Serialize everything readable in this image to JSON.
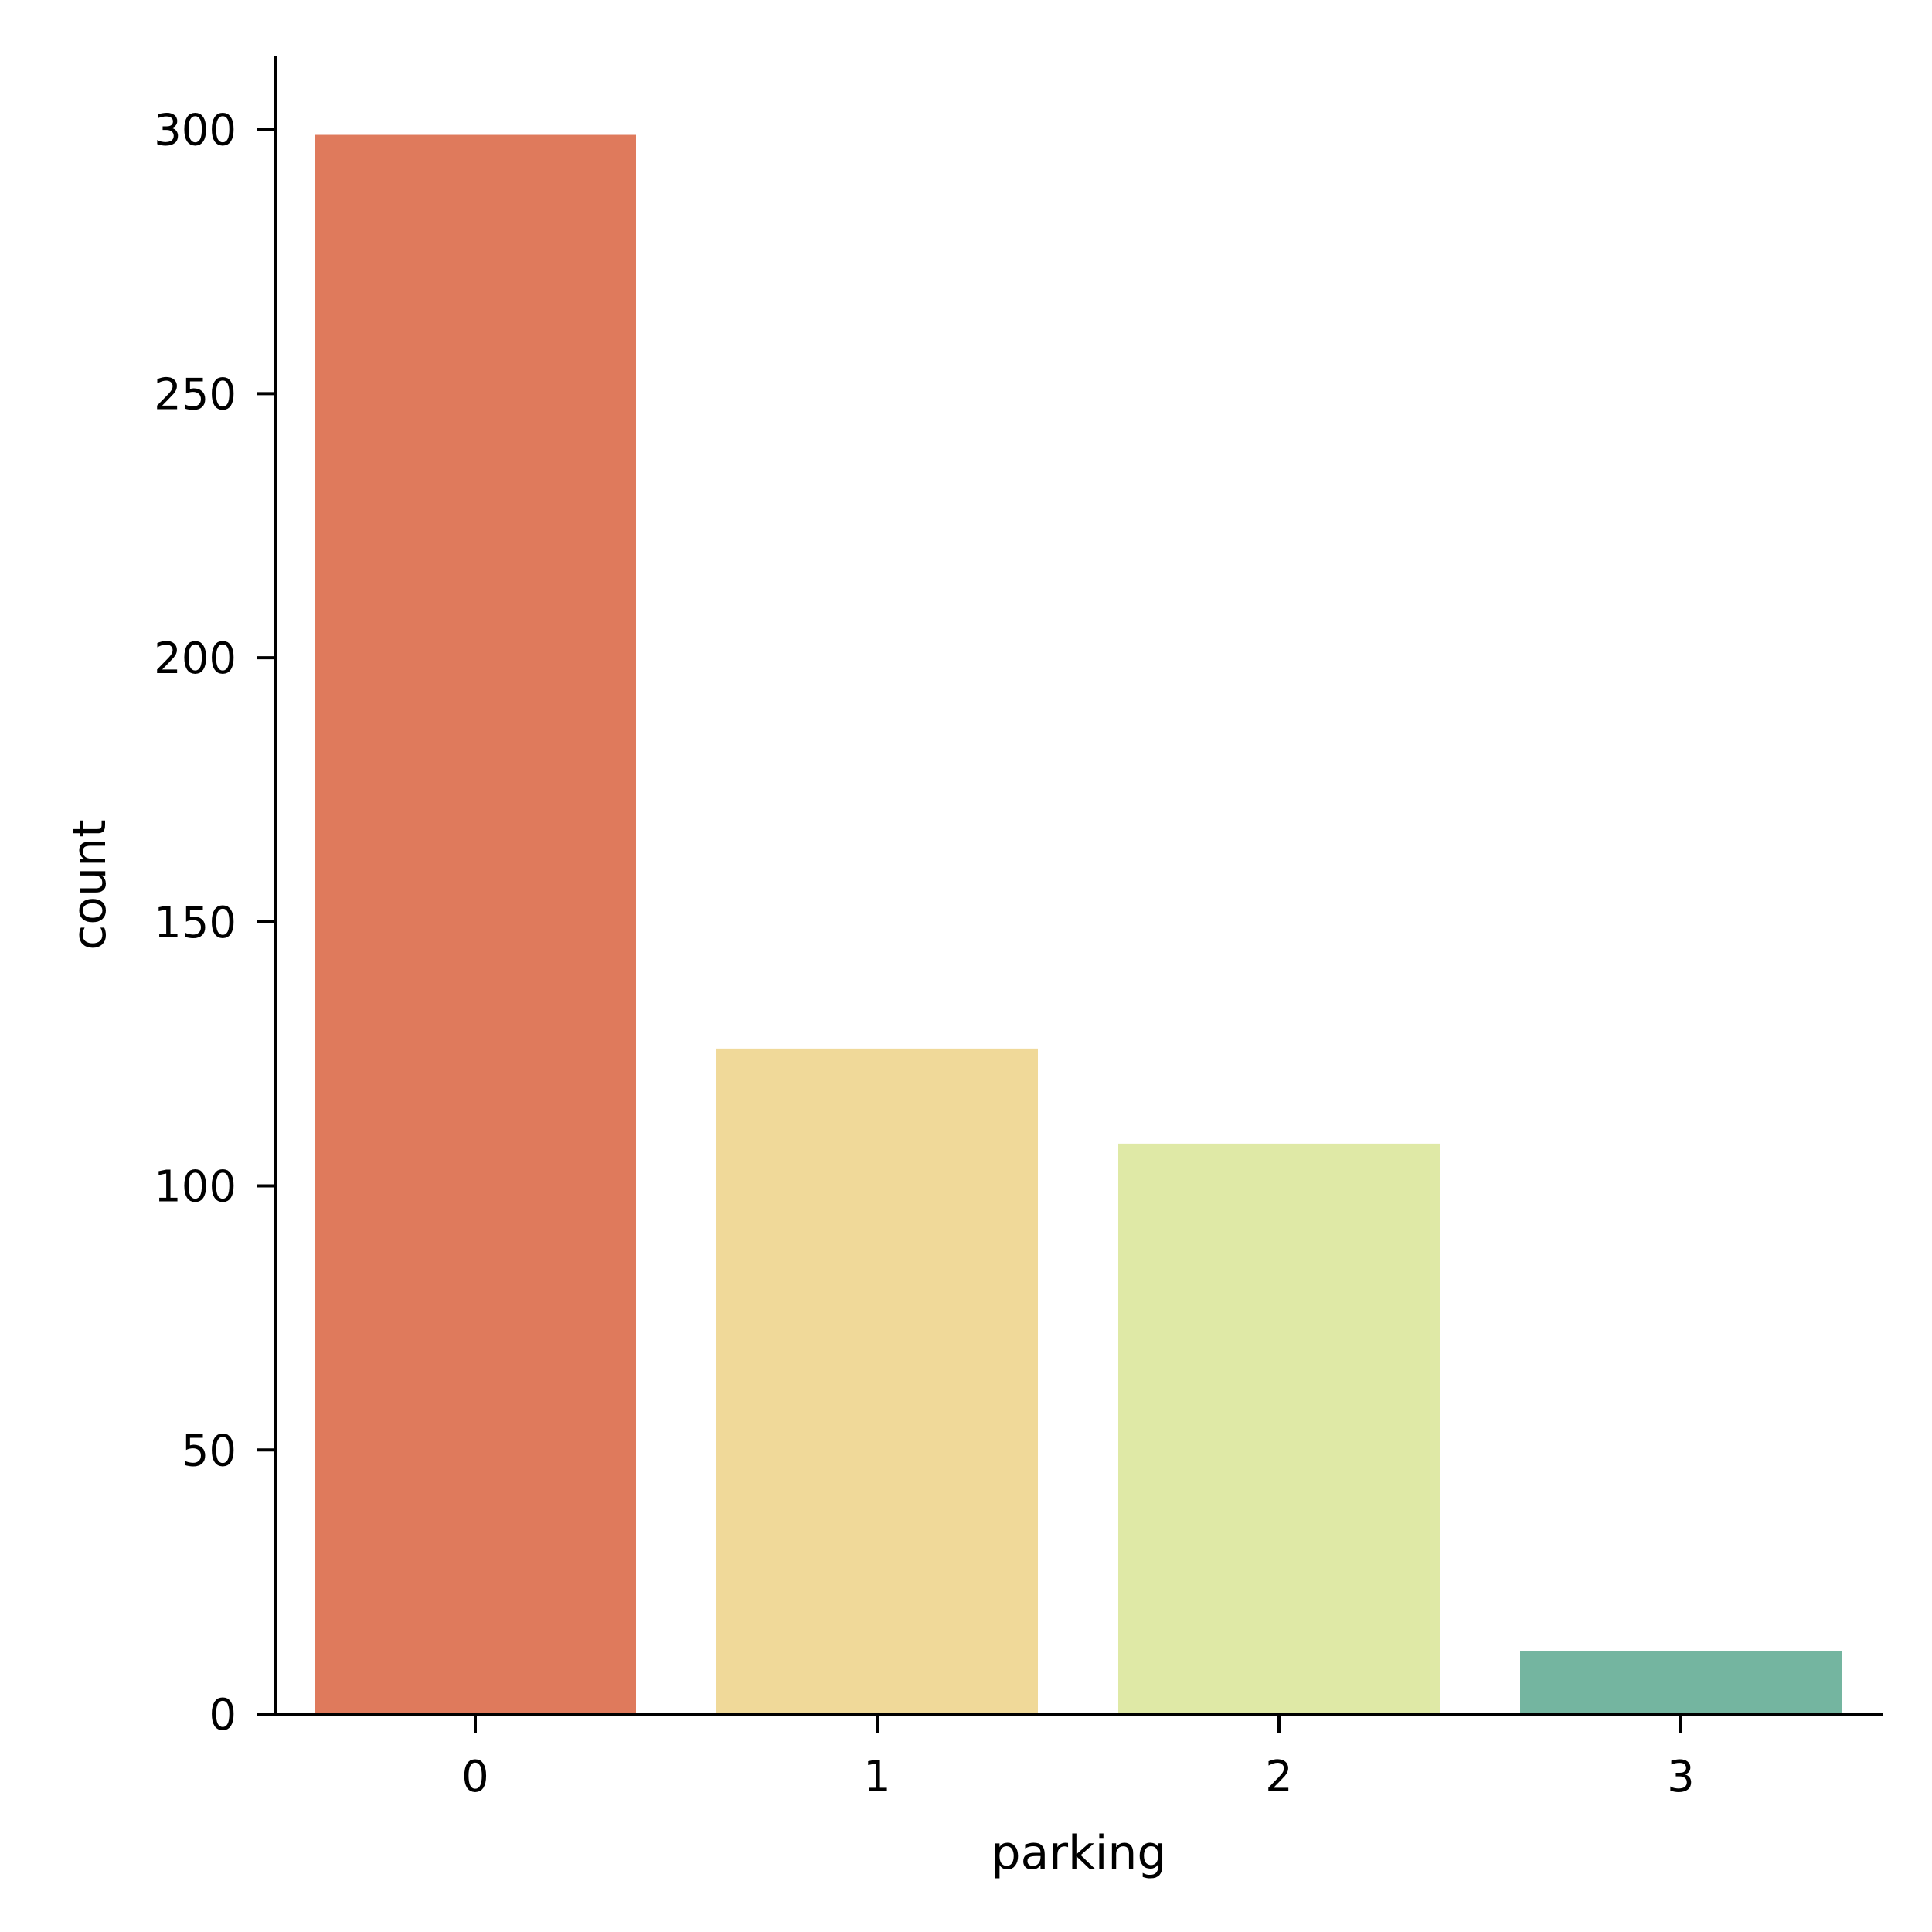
{
  "chart_data": {
    "type": "bar",
    "title": "",
    "xlabel": "parking",
    "ylabel": "count",
    "categories": [
      "0",
      "1",
      "2",
      "3"
    ],
    "values": [
      299,
      126,
      108,
      12
    ],
    "colors": [
      "#df7a5c",
      "#f0d999",
      "#dfe9a6",
      "#74b5a0"
    ],
    "ylim": [
      0,
      314
    ],
    "yticks": [
      0,
      50,
      100,
      150,
      200,
      250,
      300
    ],
    "grid": false,
    "legend": "none"
  }
}
